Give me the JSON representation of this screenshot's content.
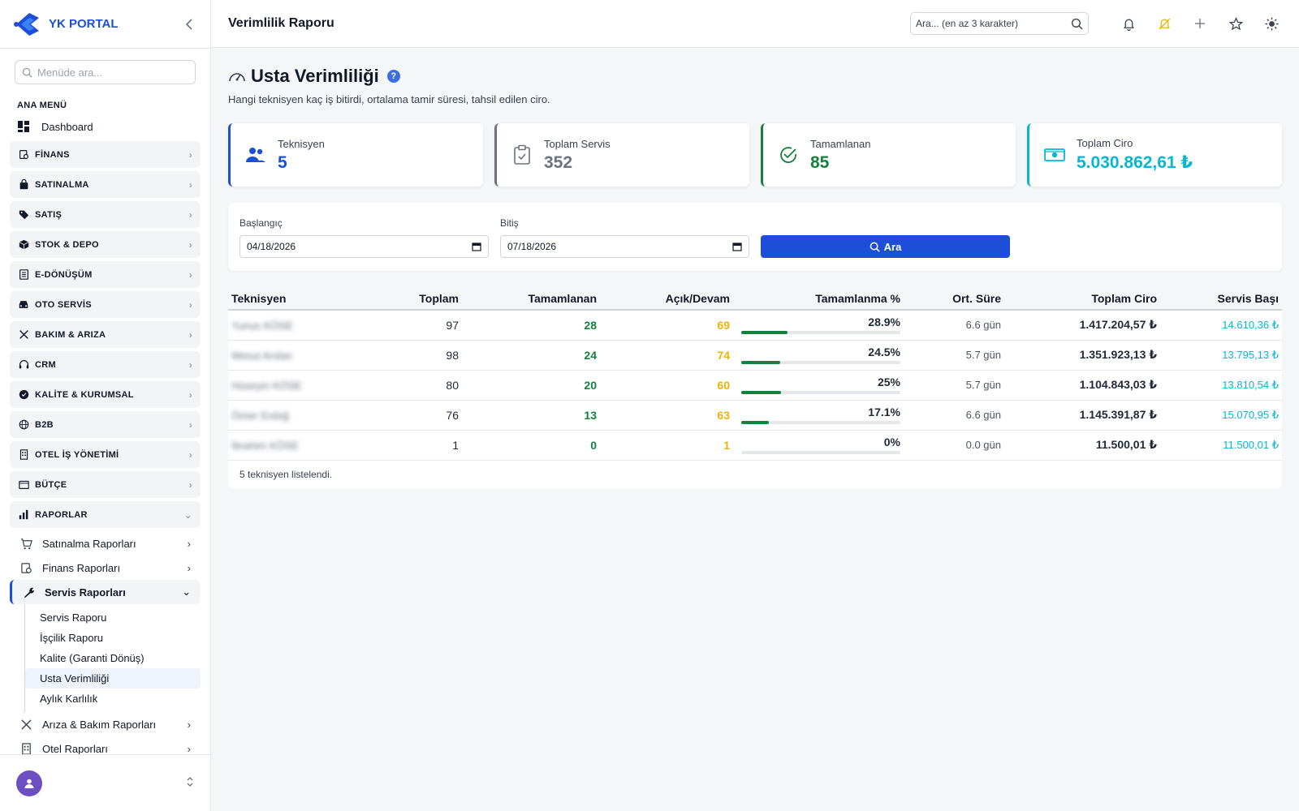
{
  "brand": {
    "name": "YK PORTAL"
  },
  "sidebar": {
    "search_placeholder": "Menüde ara...",
    "section": "ANA MENÜ",
    "dashboard": "Dashboard",
    "groups": [
      {
        "label": "FİNANS",
        "icon": "finance-icon"
      },
      {
        "label": "SATINALMA",
        "icon": "bag-icon"
      },
      {
        "label": "SATIŞ",
        "icon": "tag-icon"
      },
      {
        "label": "STOK & DEPO",
        "icon": "box-icon"
      },
      {
        "label": "E-DÖNÜŞÜM",
        "icon": "document-icon"
      },
      {
        "label": "OTO SERVİS",
        "icon": "car-icon"
      },
      {
        "label": "BAKIM & ARIZA",
        "icon": "tools-icon"
      },
      {
        "label": "CRM",
        "icon": "headset-icon"
      },
      {
        "label": "KALİTE & KURUMSAL",
        "icon": "badge-icon"
      },
      {
        "label": "B2B",
        "icon": "globe-icon"
      },
      {
        "label": "OTEL İŞ YÖNETİMİ",
        "icon": "building-icon"
      },
      {
        "label": "BÜTÇE",
        "icon": "wallet-icon"
      },
      {
        "label": "RAPORLAR",
        "icon": "chart-icon"
      }
    ],
    "reports": [
      {
        "label": "Satınalma Raporları"
      },
      {
        "label": "Finans Raporları"
      },
      {
        "label": "Servis Raporları"
      }
    ],
    "service_reports": [
      "Servis Raporu",
      "İşçilik Raporu",
      "Kalite (Garanti Dönüş)",
      "Usta Verimliliği",
      "Aylık Karlılık"
    ],
    "more_reports": [
      {
        "label": "Arıza & Bakım Raporları"
      },
      {
        "label": "Otel Raporları"
      }
    ]
  },
  "topbar": {
    "title": "Verimlilik Raporu",
    "search_placeholder": "Ara... (en az 3 karakter)"
  },
  "page": {
    "title": "Usta Verimliliği",
    "help": "?",
    "description": "Hangi teknisyen kaç iş bitirdi, ortalama tamir süresi, tahsil edilen ciro."
  },
  "stats": [
    {
      "label": "Teknisyen",
      "value": "5",
      "color": "#1d4ed8"
    },
    {
      "label": "Toplam Servis",
      "value": "352",
      "color": "#6b7280"
    },
    {
      "label": "Tamamlanan",
      "value": "85",
      "color": "#15803d"
    },
    {
      "label": "Toplam Ciro",
      "value": "5.030.862,61 ₺",
      "color": "#06b6d4"
    }
  ],
  "filter": {
    "start_label": "Başlangıç",
    "start_value": "04/18/2026",
    "end_label": "Bitiş",
    "end_value": "07/18/2026",
    "search_button": "Ara"
  },
  "table": {
    "headers": [
      "Teknisyen",
      "Toplam",
      "Tamamlanan",
      "Açık/Devam",
      "Tamamlanma %",
      "Ort. Süre",
      "Toplam Ciro",
      "Servis Başı"
    ],
    "rows": [
      {
        "name": "Yunus KÖSE",
        "total": "97",
        "done": "28",
        "open": "69",
        "pct": "28.9%",
        "pct_value": 0.289,
        "duration": "6.6 gün",
        "revenue": "1.417.204,57 ₺",
        "per": "14.610,36 ₺"
      },
      {
        "name": "Mesut Arslan",
        "total": "98",
        "done": "24",
        "open": "74",
        "pct": "24.5%",
        "pct_value": 0.245,
        "duration": "5.7 gün",
        "revenue": "1.351.923,13 ₺",
        "per": "13.795,13 ₺"
      },
      {
        "name": "Hüseyin KÖSE",
        "total": "80",
        "done": "20",
        "open": "60",
        "pct": "25%",
        "pct_value": 0.25,
        "duration": "5.7 gün",
        "revenue": "1.104.843,03 ₺",
        "per": "13.810,54 ₺"
      },
      {
        "name": "Ömer Erdoğ",
        "total": "76",
        "done": "13",
        "open": "63",
        "pct": "17.1%",
        "pct_value": 0.171,
        "duration": "6.6 gün",
        "revenue": "1.145.391,87 ₺",
        "per": "15.070,95 ₺"
      },
      {
        "name": "İbrahim KÖSE",
        "total": "1",
        "done": "0",
        "open": "1",
        "pct": "0%",
        "pct_value": 0,
        "duration": "0.0 gün",
        "revenue": "11.500,01 ₺",
        "per": "11.500,01 ₺"
      }
    ],
    "footer": "5 teknisyen listelendi."
  }
}
